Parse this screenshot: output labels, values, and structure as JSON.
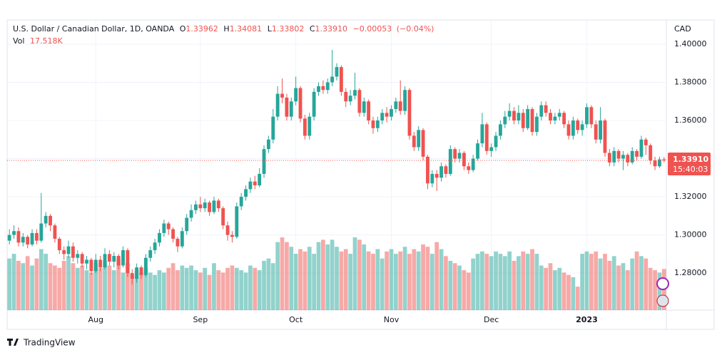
{
  "chart_data": {
    "type": "candlestick",
    "title": "U.S. Dollar / Canadian Dollar, 1D, OANDA",
    "legend": {
      "o": "O",
      "open": "1.33962",
      "h": "H",
      "high": "1.34081",
      "l": "L",
      "low": "1.33802",
      "c": "C",
      "close": "1.33910",
      "change": "−0.00053",
      "change_pct": "(−0.04%)",
      "vol": "Vol",
      "volume": "17.518K"
    },
    "y_label": "CAD",
    "price_label": "1.33910",
    "countdown": "15:40:03",
    "footer": "TradingView",
    "up_color": "#26a69a",
    "down_color": "#ef5350",
    "ylim": [
      1.2606,
      1.4127
    ],
    "yticks": [
      {
        "value": 1.28,
        "label": "1.28000"
      },
      {
        "value": 1.3,
        "label": "1.30000"
      },
      {
        "value": 1.32,
        "label": "1.32000"
      },
      {
        "value": 1.34,
        "label": "1.34000"
      },
      {
        "value": 1.36,
        "label": "1.36000"
      },
      {
        "value": 1.38,
        "label": "1.38000"
      },
      {
        "value": 1.4,
        "label": "1.40000"
      }
    ],
    "grid": true,
    "categories": [
      null,
      null,
      null,
      null,
      null,
      null,
      null,
      null,
      null,
      null,
      null,
      null,
      null,
      null,
      null,
      null,
      null,
      null,
      null,
      "Aug",
      null,
      null,
      null,
      null,
      null,
      null,
      null,
      null,
      null,
      null,
      null,
      null,
      null,
      null,
      null,
      null,
      null,
      null,
      null,
      null,
      null,
      null,
      "Sep",
      null,
      null,
      null,
      null,
      null,
      null,
      null,
      null,
      null,
      null,
      null,
      null,
      null,
      null,
      null,
      null,
      null,
      null,
      null,
      null,
      "Oct",
      null,
      null,
      null,
      null,
      null,
      null,
      null,
      null,
      null,
      null,
      null,
      null,
      null,
      null,
      null,
      null,
      null,
      null,
      null,
      null,
      "Nov",
      null,
      null,
      null,
      null,
      null,
      null,
      null,
      null,
      null,
      null,
      null,
      null,
      null,
      null,
      null,
      null,
      null,
      null,
      null,
      null,
      null,
      "Dec",
      null,
      null,
      null,
      null,
      null,
      null,
      null,
      null,
      null,
      null,
      null,
      null,
      null,
      null,
      null,
      null,
      null,
      null,
      null,
      null,
      "2023",
      null,
      null,
      null,
      null,
      null,
      null,
      null,
      null,
      null,
      null,
      null,
      null,
      null,
      null,
      null,
      null,
      null
    ],
    "open": [
      1.297,
      1.3,
      1.302,
      1.296,
      1.299,
      1.295,
      1.301,
      1.297,
      1.306,
      1.31,
      1.305,
      1.298,
      1.292,
      1.29,
      1.294,
      1.288,
      1.29,
      1.285,
      1.287,
      1.281,
      1.287,
      1.283,
      1.29,
      1.286,
      1.289,
      1.284,
      1.292,
      1.28,
      1.277,
      1.283,
      1.279,
      1.288,
      1.292,
      1.296,
      1.301,
      1.306,
      1.303,
      1.298,
      1.294,
      1.302,
      1.309,
      1.313,
      1.316,
      1.314,
      1.317,
      1.312,
      1.318,
      1.314,
      1.305,
      1.3,
      1.299,
      1.315,
      1.32,
      1.324,
      1.328,
      1.326,
      1.332,
      1.345,
      1.35,
      1.362,
      1.374,
      1.372,
      1.362,
      1.37,
      1.377,
      1.361,
      1.352,
      1.362,
      1.375,
      1.378,
      1.376,
      1.38,
      1.383,
      1.388,
      1.375,
      1.37,
      1.373,
      1.376,
      1.364,
      1.37,
      1.36,
      1.356,
      1.36,
      1.364,
      1.362,
      1.366,
      1.37,
      1.365,
      1.376,
      1.352,
      1.346,
      1.355,
      1.341,
      1.327,
      1.332,
      1.33,
      1.336,
      1.332,
      1.345,
      1.34,
      1.343,
      1.336,
      1.334,
      1.34,
      1.348,
      1.358,
      1.344,
      1.346,
      1.352,
      1.358,
      1.362,
      1.365,
      1.36,
      1.364,
      1.356,
      1.366,
      1.354,
      1.362,
      1.368,
      1.364,
      1.36,
      1.362,
      1.364,
      1.358,
      1.352,
      1.36,
      1.355,
      1.358,
      1.367,
      1.358,
      1.35,
      1.36,
      1.343,
      1.338,
      1.344,
      1.34,
      1.342,
      1.338,
      1.344,
      1.341,
      1.35,
      1.347,
      1.339,
      1.336,
      1.3396
    ],
    "high": [
      1.303,
      1.305,
      1.304,
      1.301,
      1.3,
      1.303,
      1.303,
      1.322,
      1.312,
      1.311,
      1.306,
      1.299,
      1.294,
      1.297,
      1.296,
      1.292,
      1.291,
      1.289,
      1.288,
      1.29,
      1.289,
      1.293,
      1.292,
      1.291,
      1.29,
      1.294,
      1.293,
      1.282,
      1.285,
      1.284,
      1.29,
      1.294,
      1.298,
      1.303,
      1.308,
      1.307,
      1.304,
      1.299,
      1.304,
      1.311,
      1.316,
      1.318,
      1.32,
      1.319,
      1.318,
      1.32,
      1.319,
      1.315,
      1.307,
      1.302,
      1.317,
      1.322,
      1.326,
      1.33,
      1.331,
      1.335,
      1.347,
      1.352,
      1.366,
      1.378,
      1.382,
      1.374,
      1.372,
      1.383,
      1.378,
      1.363,
      1.364,
      1.377,
      1.38,
      1.381,
      1.382,
      1.397,
      1.39,
      1.389,
      1.377,
      1.376,
      1.385,
      1.377,
      1.372,
      1.371,
      1.362,
      1.362,
      1.366,
      1.367,
      1.368,
      1.372,
      1.381,
      1.378,
      1.377,
      1.354,
      1.357,
      1.356,
      1.342,
      1.334,
      1.334,
      1.338,
      1.337,
      1.347,
      1.346,
      1.345,
      1.344,
      1.338,
      1.342,
      1.35,
      1.364,
      1.359,
      1.348,
      1.354,
      1.36,
      1.365,
      1.369,
      1.367,
      1.368,
      1.366,
      1.368,
      1.367,
      1.364,
      1.37,
      1.37,
      1.366,
      1.364,
      1.366,
      1.365,
      1.36,
      1.362,
      1.361,
      1.36,
      1.369,
      1.368,
      1.36,
      1.367,
      1.361,
      1.345,
      1.346,
      1.345,
      1.344,
      1.343,
      1.346,
      1.345,
      1.352,
      1.351,
      1.348,
      1.341,
      1.341,
      1.3408
    ],
    "low": [
      1.295,
      1.298,
      1.294,
      1.294,
      1.293,
      1.294,
      1.295,
      1.296,
      1.304,
      1.302,
      1.296,
      1.29,
      1.287,
      1.288,
      1.286,
      1.285,
      1.283,
      1.282,
      1.279,
      1.28,
      1.281,
      1.282,
      1.284,
      1.283,
      1.282,
      1.283,
      1.278,
      1.274,
      1.275,
      1.277,
      1.278,
      1.286,
      1.29,
      1.294,
      1.299,
      1.3,
      1.296,
      1.291,
      1.293,
      1.3,
      1.307,
      1.311,
      1.312,
      1.312,
      1.31,
      1.311,
      1.312,
      1.303,
      1.297,
      1.296,
      1.298,
      1.313,
      1.318,
      1.322,
      1.324,
      1.325,
      1.33,
      1.343,
      1.348,
      1.36,
      1.369,
      1.36,
      1.36,
      1.368,
      1.359,
      1.35,
      1.35,
      1.36,
      1.373,
      1.374,
      1.374,
      1.378,
      1.381,
      1.373,
      1.367,
      1.368,
      1.371,
      1.362,
      1.362,
      1.358,
      1.353,
      1.354,
      1.358,
      1.359,
      1.36,
      1.364,
      1.363,
      1.363,
      1.35,
      1.344,
      1.344,
      1.339,
      1.324,
      1.325,
      1.323,
      1.328,
      1.33,
      1.331,
      1.338,
      1.338,
      1.334,
      1.332,
      1.333,
      1.339,
      1.346,
      1.342,
      1.341,
      1.344,
      1.35,
      1.356,
      1.36,
      1.358,
      1.358,
      1.354,
      1.355,
      1.352,
      1.352,
      1.36,
      1.362,
      1.358,
      1.358,
      1.36,
      1.356,
      1.35,
      1.35,
      1.353,
      1.352,
      1.356,
      1.356,
      1.348,
      1.348,
      1.341,
      1.336,
      1.336,
      1.338,
      1.334,
      1.336,
      1.337,
      1.339,
      1.34,
      1.342,
      1.337,
      1.334,
      1.335,
      1.338
    ],
    "close": [
      1.3,
      1.302,
      1.296,
      1.299,
      1.295,
      1.301,
      1.297,
      1.306,
      1.31,
      1.305,
      1.298,
      1.292,
      1.29,
      1.294,
      1.288,
      1.29,
      1.285,
      1.287,
      1.281,
      1.287,
      1.283,
      1.29,
      1.286,
      1.289,
      1.284,
      1.292,
      1.28,
      1.277,
      1.283,
      1.279,
      1.288,
      1.292,
      1.296,
      1.301,
      1.306,
      1.303,
      1.298,
      1.294,
      1.302,
      1.309,
      1.313,
      1.316,
      1.314,
      1.317,
      1.312,
      1.318,
      1.314,
      1.305,
      1.3,
      1.299,
      1.315,
      1.32,
      1.324,
      1.328,
      1.326,
      1.332,
      1.345,
      1.35,
      1.362,
      1.374,
      1.372,
      1.362,
      1.37,
      1.377,
      1.361,
      1.352,
      1.362,
      1.375,
      1.378,
      1.376,
      1.38,
      1.383,
      1.388,
      1.375,
      1.37,
      1.373,
      1.376,
      1.364,
      1.37,
      1.36,
      1.356,
      1.36,
      1.364,
      1.362,
      1.366,
      1.37,
      1.365,
      1.376,
      1.352,
      1.346,
      1.355,
      1.341,
      1.327,
      1.332,
      1.33,
      1.336,
      1.332,
      1.345,
      1.34,
      1.343,
      1.336,
      1.334,
      1.34,
      1.348,
      1.358,
      1.344,
      1.346,
      1.352,
      1.358,
      1.362,
      1.365,
      1.36,
      1.364,
      1.356,
      1.366,
      1.354,
      1.362,
      1.368,
      1.364,
      1.36,
      1.362,
      1.364,
      1.358,
      1.352,
      1.36,
      1.355,
      1.358,
      1.367,
      1.358,
      1.35,
      1.36,
      1.343,
      1.338,
      1.344,
      1.34,
      1.342,
      1.338,
      1.344,
      1.341,
      1.35,
      1.347,
      1.339,
      1.336,
      1.3396,
      1.3391
    ],
    "volume": [
      22,
      24,
      21,
      20,
      23,
      19,
      22,
      26,
      24,
      20,
      19,
      18,
      21,
      23,
      20,
      18,
      19,
      17,
      16,
      20,
      18,
      21,
      19,
      17,
      22,
      16,
      20,
      15,
      17,
      16,
      18,
      16,
      15,
      17,
      16,
      18,
      20,
      17,
      19,
      18,
      19,
      17,
      16,
      18,
      15,
      20,
      17,
      16,
      18,
      19,
      18,
      17,
      16,
      19,
      18,
      17,
      21,
      22,
      20,
      29,
      31,
      29,
      27,
      24,
      26,
      25,
      27,
      24,
      29,
      30,
      28,
      30,
      27,
      25,
      26,
      24,
      31,
      30,
      28,
      25,
      24,
      26,
      22,
      25,
      26,
      24,
      25,
      27,
      24,
      26,
      25,
      28,
      27,
      24,
      29,
      26,
      23,
      21,
      20,
      19,
      17,
      16,
      22,
      24,
      25,
      24,
      23,
      25,
      24,
      23,
      25,
      21,
      23,
      25,
      24,
      26,
      24,
      19,
      18,
      20,
      17,
      18,
      16,
      15,
      14,
      10,
      24,
      25,
      24,
      25,
      22,
      24,
      21,
      23,
      19,
      20,
      17,
      22,
      25,
      23,
      22,
      18,
      17,
      16,
      17.518
    ]
  }
}
